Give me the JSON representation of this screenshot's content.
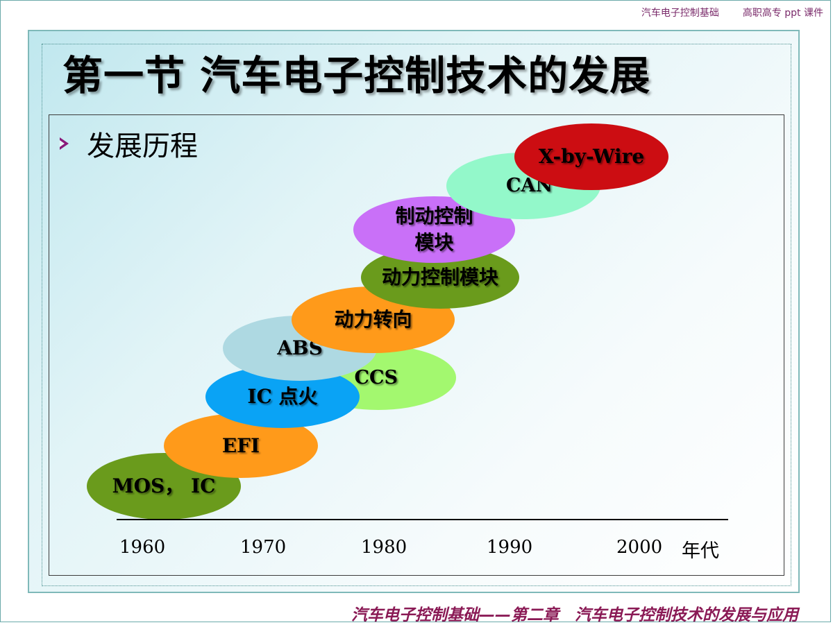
{
  "header": {
    "course": "汽车电子控制基础",
    "series": "高职高专 ppt 课件"
  },
  "slide": {
    "title": "第一节 汽车电子控制技术的发展",
    "bullet": "发展历程"
  },
  "timeline": {
    "items": [
      {
        "label": "MOS， IC",
        "color": "#6a9b1c"
      },
      {
        "label": "EFI",
        "color": "#ff9a1a"
      },
      {
        "label": "CCS",
        "color": "#a3f86f"
      },
      {
        "label": "IC 点火",
        "color": "#0aa3f5"
      },
      {
        "label": "ABS",
        "color": "#aed9e2"
      },
      {
        "label": "动力转向",
        "color": "#ff9a1a"
      },
      {
        "label": "动力控制模块",
        "color": "#6a9b1c"
      },
      {
        "label": "制动控制\n模块",
        "color": "#c970f8"
      },
      {
        "label": "CAN",
        "color": "#93f8ca"
      },
      {
        "label": "X-by-Wire",
        "color": "#cc0d12"
      }
    ],
    "axis_ticks": [
      "1960",
      "1970",
      "1980",
      "1990",
      "2000"
    ],
    "axis_unit": "年代"
  },
  "footer": {
    "text": "汽车电子控制基础——第二章　汽车电子控制技术的发展与应用"
  }
}
